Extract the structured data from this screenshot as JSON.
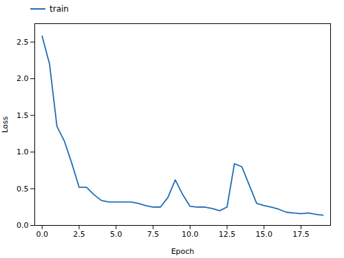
{
  "chart_data": {
    "type": "line",
    "x": [
      0,
      0.5,
      1,
      1.5,
      2,
      2.5,
      3,
      3.5,
      4,
      4.5,
      5,
      5.5,
      6,
      6.5,
      7,
      7.5,
      8,
      8.5,
      9,
      9.5,
      10,
      10.5,
      11,
      11.5,
      12,
      12.5,
      13,
      13.5,
      14,
      14.5,
      15,
      15.5,
      16,
      16.5,
      17,
      17.5,
      18,
      18.5,
      19
    ],
    "series": [
      {
        "name": "train",
        "color": "#1f6eb5",
        "values": [
          2.58,
          2.2,
          1.35,
          1.15,
          0.85,
          0.52,
          0.52,
          0.42,
          0.34,
          0.32,
          0.32,
          0.32,
          0.32,
          0.3,
          0.27,
          0.25,
          0.25,
          0.38,
          0.62,
          0.42,
          0.26,
          0.25,
          0.25,
          0.23,
          0.2,
          0.25,
          0.84,
          0.8,
          0.55,
          0.3,
          0.27,
          0.25,
          0.22,
          0.18,
          0.17,
          0.16,
          0.17,
          0.15,
          0.14
        ]
      }
    ],
    "xlabel": "Epoch",
    "ylabel": "Loss",
    "xlim": [
      -0.5,
      19.5
    ],
    "ylim": [
      0.0,
      2.75
    ],
    "xticks": [
      {
        "value": 0,
        "label": "0.0"
      },
      {
        "value": 2.5,
        "label": "2.5"
      },
      {
        "value": 5,
        "label": "5.0"
      },
      {
        "value": 7.5,
        "label": "7.5"
      },
      {
        "value": 10,
        "label": "10.0"
      },
      {
        "value": 12.5,
        "label": "12.5"
      },
      {
        "value": 15,
        "label": "15.0"
      },
      {
        "value": 17.5,
        "label": "17.5"
      }
    ],
    "yticks": [
      {
        "value": 0,
        "label": "0.0"
      },
      {
        "value": 0.5,
        "label": "0.5"
      },
      {
        "value": 1,
        "label": "1.0"
      },
      {
        "value": 1.5,
        "label": "1.5"
      },
      {
        "value": 2,
        "label": "2.0"
      },
      {
        "value": 2.5,
        "label": "2.5"
      }
    ],
    "grid": false,
    "legend": "upper left"
  }
}
